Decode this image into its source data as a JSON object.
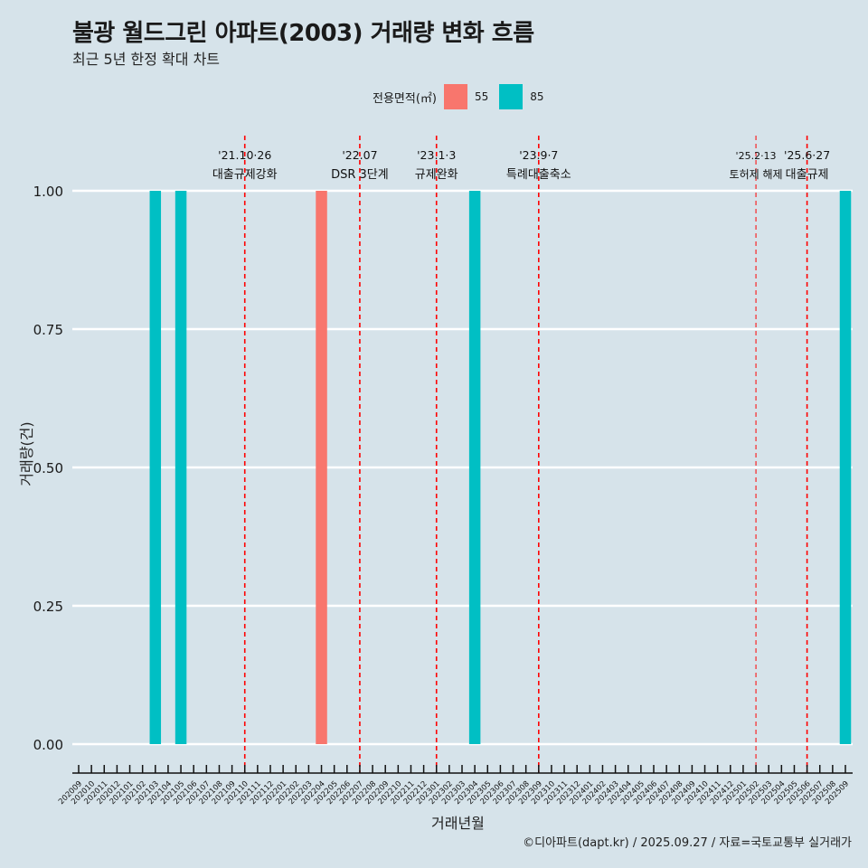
{
  "header": {
    "title": "불광 월드그린 아파트(2003) 거래량 변화 흐름",
    "subtitle": "최근 5년 한정 확대 차트"
  },
  "legend": {
    "title": "전용면적(㎡)",
    "items": [
      {
        "label": "55",
        "color": "#f8766d"
      },
      {
        "label": "85",
        "color": "#00bfc4"
      }
    ]
  },
  "caption": "©디아파트(dapt.kr) / 2025.09.27 / 자료=국토교통부 실거래가",
  "chart_data": {
    "type": "bar",
    "title": "불광 월드그린 아파트(2003) 거래량 변화 흐름",
    "subtitle": "최근 5년 한정 확대 차트",
    "xlabel": "거래년월",
    "ylabel": "거래량(건)",
    "ylim": [
      0,
      1
    ],
    "yticks": [
      "0.00",
      "0.25",
      "0.50",
      "0.75",
      "1.00"
    ],
    "ytick_values": [
      0,
      0.25,
      0.5,
      0.75,
      1
    ],
    "grid": "horizontal",
    "legend_position": "top",
    "categories": [
      "202009",
      "202010",
      "202011",
      "202012",
      "202101",
      "202102",
      "202103",
      "202104",
      "202105",
      "202106",
      "202107",
      "202108",
      "202109",
      "202110",
      "202111",
      "202112",
      "202201",
      "202202",
      "202203",
      "202204",
      "202205",
      "202206",
      "202207",
      "202208",
      "202209",
      "202210",
      "202211",
      "202212",
      "202301",
      "202302",
      "202303",
      "202304",
      "202305",
      "202306",
      "202307",
      "202308",
      "202309",
      "202310",
      "202311",
      "202312",
      "202401",
      "202402",
      "202403",
      "202404",
      "202405",
      "202406",
      "202407",
      "202408",
      "202409",
      "202410",
      "202411",
      "202412",
      "202501",
      "202502",
      "202503",
      "202504",
      "202505",
      "202506",
      "202507",
      "202508",
      "202509"
    ],
    "series": [
      {
        "name": "55",
        "color": "#f8766d",
        "points": [
          {
            "x": "202204",
            "y": 1
          }
        ]
      },
      {
        "name": "85",
        "color": "#00bfc4",
        "points": [
          {
            "x": "202103",
            "y": 1
          },
          {
            "x": "202105",
            "y": 1
          },
          {
            "x": "202304",
            "y": 1
          },
          {
            "x": "202509",
            "y": 1
          }
        ]
      }
    ],
    "annotations": [
      {
        "x": "202110",
        "date": "'21.10·26",
        "label": "대출규제강화",
        "size": "normal"
      },
      {
        "x": "202207",
        "date": "'22.07",
        "label": "DSR 3단계",
        "size": "normal"
      },
      {
        "x": "202301",
        "date": "'23.1·3",
        "label": "규제완화",
        "size": "normal"
      },
      {
        "x": "202309",
        "date": "'23.9·7",
        "label": "특례대출축소",
        "size": "normal"
      },
      {
        "x": "202502",
        "date": "'25.2·13",
        "label": "토허제 해제",
        "size": "small"
      },
      {
        "x": "202506",
        "date": "'25.6·27",
        "label": "대출규제",
        "size": "normal"
      }
    ],
    "annotation_line_color": "#ff0000"
  }
}
